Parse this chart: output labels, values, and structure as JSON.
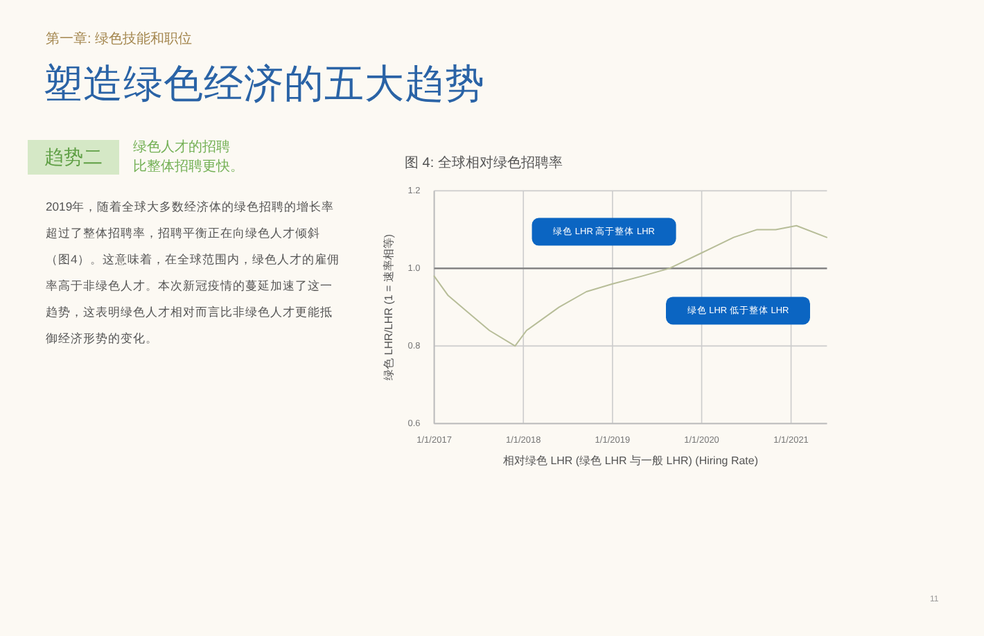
{
  "chart_data": {
    "type": "line",
    "title": "图 4: 全球相对绿色招聘率",
    "xlabel": "相对绿色 LHR (绿色 LHR 与一般 LHR) (Hiring Rate)",
    "ylabel": "绿色 LHR/LHR (1 = 速率相等)",
    "x": [
      "2017-01-01",
      "2017-02-27",
      "2017-05-13",
      "2017-08-15",
      "2017-11-28",
      "2018-01-14",
      "2018-05-27",
      "2018-09-16",
      "2019-01-01",
      "2019-05-01",
      "2019-08-22",
      "2020-01-01",
      "2020-05-11",
      "2020-08-15",
      "2020-10-30",
      "2021-01-23",
      "2021-05-27"
    ],
    "series": [
      {
        "color": "#b7bd98",
        "values": [
          0.98,
          0.93,
          0.89,
          0.84,
          0.8,
          0.84,
          0.9,
          0.94,
          0.96,
          0.98,
          1.0,
          1.04,
          1.08,
          1.1,
          1.1,
          1.11,
          1.08
        ]
      }
    ],
    "xlim": [
      "2017-01-01",
      "2021-05-28"
    ],
    "xticks": [
      {
        "value": "2017-01-01",
        "label": "1/1/2017"
      },
      {
        "value": "2018-01-01",
        "label": "1/1/2018"
      },
      {
        "value": "2019-01-01",
        "label": "1/1/2019"
      },
      {
        "value": "2020-01-01",
        "label": "1/1/2020"
      },
      {
        "value": "2021-01-01",
        "label": "1/1/2021"
      }
    ],
    "ylim": [
      0.6,
      1.2
    ],
    "yticks": [
      0.6,
      0.8,
      {
        "value": 1,
        "label": "1.0"
      },
      1.2
    ],
    "grid": true,
    "ref_lines": [
      {
        "axis": "y",
        "value": 1,
        "color": "#7d7d7d"
      }
    ],
    "annotations": [
      "第一章: 绿色技能和职位",
      "塑造绿色经济的五大趋势",
      "趋势二",
      "绿色人才的招聘",
      "比整体招聘更快。",
      "2019年，随着全球大多数经济体的绿色招聘的增长率超过了整体招聘率，招聘平衡正在向绿色人才倾斜（图4）。这意味着，在全球范围内，绿色人才的雇佣率高于非绿色人才。本次新冠疫情的蔓延加速了这一趋势，这表明绿色人才相对而言比非绿色人才更能抵御经济形势的变化。",
      "11",
      "绿色 LHR 高于整体 LHR",
      "绿色 LHR 低于整体 LHR"
    ]
  }
}
